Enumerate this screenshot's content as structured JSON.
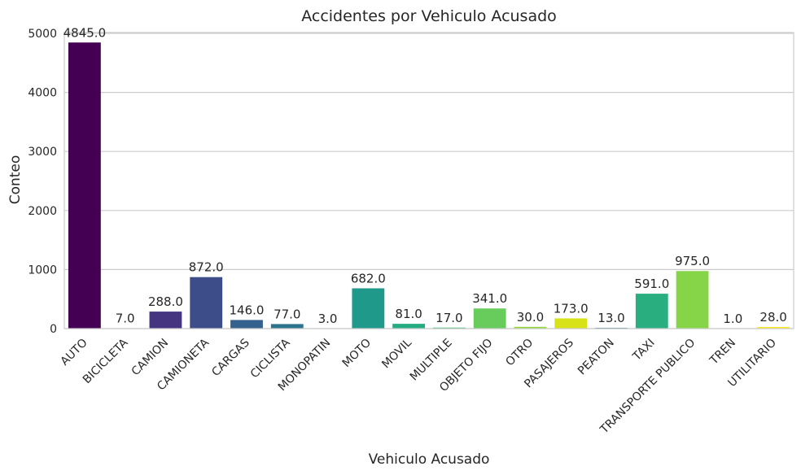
{
  "chart_data": {
    "type": "bar",
    "title": "Accidentes por Vehiculo Acusado",
    "xlabel": "Vehiculo Acusado",
    "ylabel": "Conteo",
    "ylim": [
      0,
      5000
    ],
    "yticks": [
      0,
      1000,
      2000,
      3000,
      4000,
      5000
    ],
    "grid": true,
    "categories": [
      "AUTO",
      "BICICLETA",
      "CAMION",
      "CAMIONETA",
      "CARGAS",
      "CICLISTA",
      "MONOPATIN",
      "MOTO",
      "MOVIL",
      "MULTIPLE",
      "OBJETO FIJO",
      "OTRO",
      "PASAJEROS",
      "PEATON",
      "TAXI",
      "TRANSPORTE PUBLICO",
      "TREN",
      "UTILITARIO"
    ],
    "values": [
      4845,
      7,
      288,
      872,
      146,
      77,
      3,
      682,
      81,
      17,
      341,
      30,
      173,
      13,
      591,
      975,
      1,
      28
    ],
    "data_labels": [
      "4845.0",
      "7.0",
      "288.0",
      "872.0",
      "146.0",
      "77.0",
      "3.0",
      "682.0",
      "81.0",
      "17.0",
      "341.0",
      "30.0",
      "173.0",
      "13.0",
      "591.0",
      "975.0",
      "1.0",
      "28.0"
    ],
    "colors": [
      "#440154",
      "#481c6e",
      "#453581",
      "#3d4d8a",
      "#34618d",
      "#2b748e",
      "#24878e",
      "#1f998a",
      "#25ac82",
      "#40bd72",
      "#67cc5c",
      "#96d83a",
      "#d8e219",
      "#2c728e",
      "#29af7f",
      "#86d549",
      "#b8de29",
      "#fde725"
    ]
  }
}
